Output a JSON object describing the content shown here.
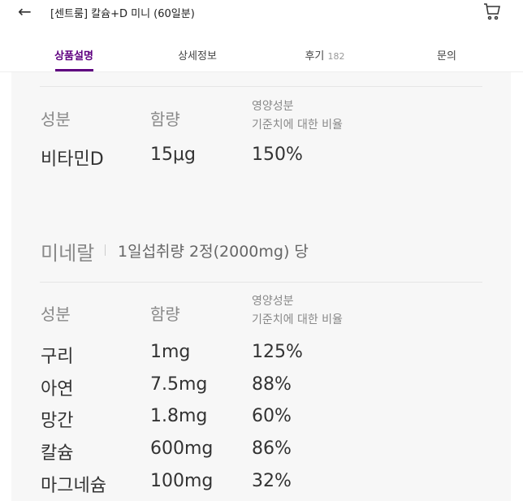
{
  "header": {
    "title": "[센트룸] 칼슘+D 미니 (60일분)",
    "back_icon": "arrow-left-icon",
    "cart_icon": "cart-icon"
  },
  "tabs": [
    {
      "label": "상품설명",
      "active": true
    },
    {
      "label": "상세정보"
    },
    {
      "label": "후기",
      "count": "182"
    },
    {
      "label": "문의"
    }
  ],
  "accent_color": "#5f0080",
  "vitamin_table": {
    "headers": {
      "name": "성분",
      "amount": "함량",
      "ratio_line1": "영양성분",
      "ratio_line2": "기준치에 대한 비율"
    },
    "rows": [
      {
        "name": "비타민D",
        "amount": "15μg",
        "ratio": "150%"
      }
    ]
  },
  "mineral_section": {
    "title": "미네랄",
    "subtitle": "1일섭취량 2정(2000mg) 당"
  },
  "mineral_table": {
    "headers": {
      "name": "성분",
      "amount": "함량",
      "ratio_line1": "영양성분",
      "ratio_line2": "기준치에 대한 비율"
    },
    "rows": [
      {
        "name": "구리",
        "amount": "1mg",
        "ratio": "125%"
      },
      {
        "name": "아연",
        "amount": "7.5mg",
        "ratio": "88%"
      },
      {
        "name": "망간",
        "amount": "1.8mg",
        "ratio": "60%"
      },
      {
        "name": "칼슘",
        "amount": "600mg",
        "ratio": "86%"
      },
      {
        "name": "마그네슘",
        "amount": "100mg",
        "ratio": "32%"
      }
    ]
  }
}
